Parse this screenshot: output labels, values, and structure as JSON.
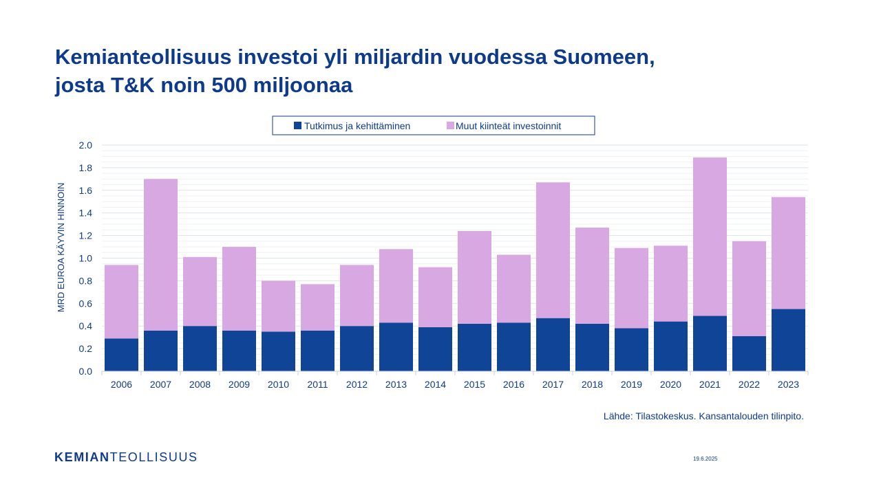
{
  "slide": {
    "title_line1": "Kemianteollisuus investoi yli miljardin vuodessa Suomeen,",
    "title_line2": "josta T&K noin 500 miljoonaa",
    "source": "Lähde: Tilastokeskus. Kansantalouden tilinpito.",
    "logo_bold": "KEMIAN",
    "logo_regular": "TEOLLISUUS",
    "date": "19.6.2025"
  },
  "colors": {
    "primary": "#0e3a8c",
    "series_rd": "#0f4497",
    "series_other": "#d8a8e2"
  },
  "chart_data": {
    "type": "bar",
    "stacked": true,
    "categories": [
      "2006",
      "2007",
      "2008",
      "2009",
      "2010",
      "2011",
      "2012",
      "2013",
      "2014",
      "2015",
      "2016",
      "2017",
      "2018",
      "2019",
      "2020",
      "2021",
      "2022",
      "2023"
    ],
    "series": [
      {
        "name": "Tutkimus ja kehittäminen",
        "values": [
          0.29,
          0.36,
          0.4,
          0.36,
          0.35,
          0.36,
          0.4,
          0.43,
          0.39,
          0.42,
          0.43,
          0.47,
          0.42,
          0.38,
          0.44,
          0.49,
          0.31,
          0.55
        ]
      },
      {
        "name": "Muut kiinteät investoinnit",
        "values": [
          0.65,
          1.34,
          0.61,
          0.74,
          0.45,
          0.41,
          0.54,
          0.65,
          0.53,
          0.82,
          0.6,
          1.2,
          0.85,
          0.71,
          0.67,
          1.4,
          0.84,
          0.99
        ]
      }
    ],
    "ylabel": "MRD EUROA KÄYVIN HINNOIN",
    "ylim": [
      0,
      2.0
    ],
    "yticks": [
      "0.0",
      "0.2",
      "0.4",
      "0.6",
      "0.8",
      "1.0",
      "1.2",
      "1.4",
      "1.6",
      "1.8",
      "2.0"
    ],
    "grid": true,
    "legend_position": "top"
  }
}
